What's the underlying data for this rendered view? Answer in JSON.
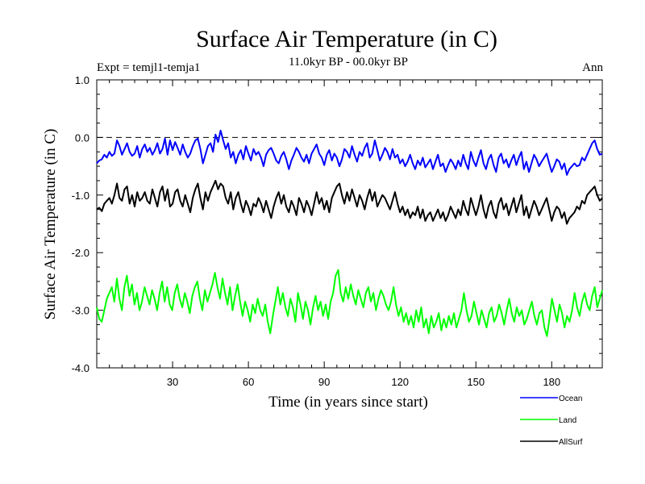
{
  "chart_data": {
    "type": "line",
    "title": "Surface Air Temperature (in C)",
    "subtitle": "11.0kyr BP - 00.0kyr BP",
    "left_label": "Expt = temjl1-temja1",
    "right_label": "Ann",
    "xlabel": "Time (in years since start)",
    "ylabel": "Surface Air Temperature (in C)",
    "xlim": [
      0,
      200
    ],
    "ylim": [
      -4.0,
      1.0
    ],
    "x_ticks": [
      30,
      60,
      90,
      120,
      150,
      180
    ],
    "y_ticks": [
      1.0,
      0.0,
      -1.0,
      -2.0,
      -3.0,
      -4.0
    ],
    "y_tick_labels": [
      "1.0",
      "0.0",
      "-1.0",
      "-2.0",
      "-3.0",
      "-4.0"
    ],
    "reference_line": {
      "y": 0.0,
      "style": "dashed"
    },
    "legend_position": "bottom-right-outside",
    "series": [
      {
        "name": "Ocean",
        "color": "#0000ff",
        "values": [
          -0.45,
          -0.4,
          -0.38,
          -0.3,
          -0.35,
          -0.25,
          -0.32,
          -0.28,
          -0.05,
          -0.15,
          -0.3,
          -0.2,
          -0.1,
          -0.25,
          -0.32,
          -0.28,
          -0.15,
          -0.35,
          -0.2,
          -0.12,
          -0.25,
          -0.18,
          -0.3,
          -0.22,
          -0.1,
          -0.28,
          -0.2,
          -0.02,
          -0.3,
          -0.05,
          -0.22,
          -0.08,
          -0.18,
          -0.3,
          -0.12,
          -0.25,
          -0.35,
          -0.28,
          -0.15,
          -0.05,
          -0.02,
          -0.2,
          -0.45,
          -0.3,
          -0.15,
          -0.1,
          -0.25,
          0.05,
          -0.08,
          0.12,
          -0.05,
          -0.2,
          -0.1,
          -0.35,
          -0.25,
          -0.45,
          -0.3,
          -0.22,
          -0.38,
          -0.15,
          -0.28,
          -0.4,
          -0.2,
          -0.3,
          -0.25,
          -0.35,
          -0.5,
          -0.3,
          -0.22,
          -0.18,
          -0.28,
          -0.4,
          -0.45,
          -0.32,
          -0.25,
          -0.38,
          -0.55,
          -0.4,
          -0.3,
          -0.18,
          -0.25,
          -0.35,
          -0.42,
          -0.3,
          -0.45,
          -0.28,
          -0.2,
          -0.12,
          -0.28,
          -0.35,
          -0.48,
          -0.3,
          -0.22,
          -0.4,
          -0.28,
          -0.35,
          -0.5,
          -0.38,
          -0.2,
          -0.25,
          -0.35,
          -0.15,
          -0.3,
          -0.42,
          -0.25,
          -0.32,
          -0.18,
          -0.1,
          -0.35,
          -0.28,
          -0.05,
          -0.22,
          -0.4,
          -0.3,
          -0.18,
          -0.25,
          -0.38,
          -0.2,
          -0.35,
          -0.3,
          -0.45,
          -0.38,
          -0.5,
          -0.42,
          -0.3,
          -0.45,
          -0.55,
          -0.4,
          -0.48,
          -0.35,
          -0.52,
          -0.45,
          -0.38,
          -0.55,
          -0.42,
          -0.3,
          -0.5,
          -0.45,
          -0.6,
          -0.48,
          -0.38,
          -0.45,
          -0.55,
          -0.4,
          -0.5,
          -0.3,
          -0.45,
          -0.55,
          -0.25,
          -0.4,
          -0.5,
          -0.35,
          -0.22,
          -0.45,
          -0.55,
          -0.38,
          -0.3,
          -0.48,
          -0.6,
          -0.35,
          -0.28,
          -0.45,
          -0.38,
          -0.52,
          -0.4,
          -0.3,
          -0.48,
          -0.35,
          -0.25,
          -0.55,
          -0.42,
          -0.6,
          -0.45,
          -0.3,
          -0.38,
          -0.5,
          -0.42,
          -0.35,
          -0.28,
          -0.45,
          -0.6,
          -0.5,
          -0.38,
          -0.42,
          -0.55,
          -0.45,
          -0.65,
          -0.55,
          -0.5,
          -0.45,
          -0.5,
          -0.48,
          -0.35,
          -0.4,
          -0.3,
          -0.2,
          -0.1,
          -0.05,
          -0.2,
          -0.3,
          -0.28
        ]
      },
      {
        "name": "Land",
        "color": "#00ff00",
        "values": [
          -2.95,
          -3.15,
          -3.2,
          -3.0,
          -2.8,
          -2.7,
          -2.6,
          -2.85,
          -2.45,
          -2.8,
          -3.0,
          -2.6,
          -2.4,
          -2.75,
          -2.55,
          -2.9,
          -2.7,
          -3.0,
          -2.85,
          -2.6,
          -2.75,
          -2.9,
          -2.65,
          -2.8,
          -3.0,
          -2.7,
          -2.5,
          -2.85,
          -2.6,
          -2.9,
          -3.0,
          -2.7,
          -2.55,
          -2.8,
          -2.95,
          -2.7,
          -2.85,
          -3.05,
          -2.75,
          -2.6,
          -2.5,
          -2.8,
          -3.0,
          -2.65,
          -2.85,
          -2.7,
          -2.55,
          -2.35,
          -2.6,
          -2.8,
          -2.45,
          -2.7,
          -2.9,
          -2.6,
          -3.0,
          -2.75,
          -2.55,
          -2.85,
          -3.1,
          -2.85,
          -3.0,
          -3.2,
          -2.9,
          -3.05,
          -2.8,
          -3.0,
          -3.1,
          -2.9,
          -3.2,
          -3.4,
          -3.1,
          -2.85,
          -2.6,
          -2.9,
          -2.7,
          -2.95,
          -3.1,
          -2.8,
          -2.95,
          -3.2,
          -2.7,
          -2.9,
          -3.15,
          -2.85,
          -3.0,
          -3.25,
          -2.95,
          -2.75,
          -3.0,
          -2.85,
          -3.1,
          -2.9,
          -3.15,
          -2.85,
          -2.7,
          -2.4,
          -2.3,
          -2.7,
          -2.85,
          -2.6,
          -2.8,
          -2.55,
          -2.75,
          -2.9,
          -2.65,
          -2.8,
          -2.95,
          -2.7,
          -2.6,
          -2.85,
          -2.7,
          -3.0,
          -2.8,
          -2.65,
          -2.75,
          -2.9,
          -3.0,
          -2.85,
          -2.6,
          -2.9,
          -3.1,
          -2.95,
          -3.2,
          -3.05,
          -3.25,
          -3.1,
          -3.3,
          -3.0,
          -3.2,
          -2.95,
          -3.3,
          -3.15,
          -3.4,
          -3.1,
          -3.3,
          -3.2,
          -3.05,
          -3.35,
          -3.15,
          -3.3,
          -3.1,
          -3.25,
          -3.05,
          -3.3,
          -3.15,
          -3.0,
          -2.7,
          -3.0,
          -3.2,
          -3.1,
          -2.85,
          -3.05,
          -3.25,
          -3.0,
          -3.15,
          -3.3,
          -3.05,
          -2.95,
          -3.2,
          -3.1,
          -2.9,
          -3.05,
          -3.25,
          -3.0,
          -2.8,
          -3.05,
          -3.2,
          -2.95,
          -3.1,
          -3.0,
          -3.25,
          -3.15,
          -3.0,
          -2.85,
          -3.1,
          -3.25,
          -3.05,
          -3.0,
          -3.3,
          -3.45,
          -3.15,
          -2.8,
          -3.0,
          -3.2,
          -2.9,
          -3.05,
          -3.3,
          -3.1,
          -3.2,
          -3.0,
          -2.7,
          -2.95,
          -3.1,
          -2.85,
          -2.7,
          -2.9,
          -3.0,
          -2.75,
          -2.6,
          -2.95,
          -2.8,
          -2.65
        ]
      },
      {
        "name": "AllSurf",
        "color": "#000000",
        "values": [
          -1.25,
          -1.22,
          -1.28,
          -1.15,
          -1.1,
          -1.05,
          -1.15,
          -1.0,
          -0.8,
          -1.05,
          -1.1,
          -0.9,
          -0.85,
          -1.15,
          -1.0,
          -1.2,
          -0.95,
          -1.1,
          -1.05,
          -0.95,
          -1.1,
          -1.15,
          -0.9,
          -1.05,
          -1.2,
          -0.95,
          -0.85,
          -1.1,
          -0.9,
          -1.2,
          -1.15,
          -0.95,
          -0.9,
          -1.1,
          -1.2,
          -1.0,
          -1.15,
          -1.3,
          -1.05,
          -0.9,
          -0.8,
          -1.05,
          -1.25,
          -0.95,
          -1.1,
          -0.95,
          -0.85,
          -0.75,
          -0.9,
          -0.8,
          -0.85,
          -1.05,
          -1.15,
          -0.95,
          -1.25,
          -1.05,
          -0.95,
          -1.15,
          -1.3,
          -1.1,
          -1.2,
          -1.35,
          -1.15,
          -1.2,
          -1.05,
          -1.15,
          -1.3,
          -1.1,
          -1.25,
          -1.4,
          -1.2,
          -1.05,
          -0.95,
          -1.15,
          -1.0,
          -1.2,
          -1.3,
          -1.1,
          -1.2,
          -1.35,
          -1.05,
          -1.15,
          -1.3,
          -1.1,
          -1.2,
          -1.35,
          -1.15,
          -0.95,
          -1.15,
          -1.05,
          -1.25,
          -1.1,
          -1.3,
          -1.05,
          -0.95,
          -0.85,
          -0.8,
          -1.0,
          -1.15,
          -0.95,
          -1.1,
          -0.9,
          -1.05,
          -1.2,
          -1.0,
          -1.1,
          -1.25,
          -1.05,
          -0.9,
          -1.1,
          -0.95,
          -1.2,
          -1.1,
          -1.0,
          -1.05,
          -1.15,
          -1.25,
          -1.1,
          -0.95,
          -1.15,
          -1.3,
          -1.2,
          -1.35,
          -1.25,
          -1.4,
          -1.3,
          -1.35,
          -1.2,
          -1.4,
          -1.25,
          -1.45,
          -1.35,
          -1.3,
          -1.45,
          -1.35,
          -1.25,
          -1.4,
          -1.3,
          -1.45,
          -1.35,
          -1.2,
          -1.3,
          -1.4,
          -1.25,
          -1.35,
          -1.1,
          -1.25,
          -1.35,
          -1.05,
          -1.2,
          -1.35,
          -1.2,
          -1.0,
          -1.25,
          -1.4,
          -1.2,
          -1.1,
          -1.3,
          -1.4,
          -1.15,
          -1.05,
          -1.25,
          -1.15,
          -1.35,
          -1.2,
          -1.05,
          -1.3,
          -1.15,
          -1.0,
          -1.35,
          -1.2,
          -1.4,
          -1.25,
          -1.1,
          -1.2,
          -1.35,
          -1.25,
          -1.15,
          -1.05,
          -1.25,
          -1.45,
          -1.3,
          -1.2,
          -1.25,
          -1.4,
          -1.3,
          -1.5,
          -1.4,
          -1.35,
          -1.3,
          -1.2,
          -1.25,
          -1.1,
          -1.15,
          -1.0,
          -0.95,
          -0.9,
          -0.85,
          -1.0,
          -1.1,
          -1.05
        ]
      }
    ]
  }
}
